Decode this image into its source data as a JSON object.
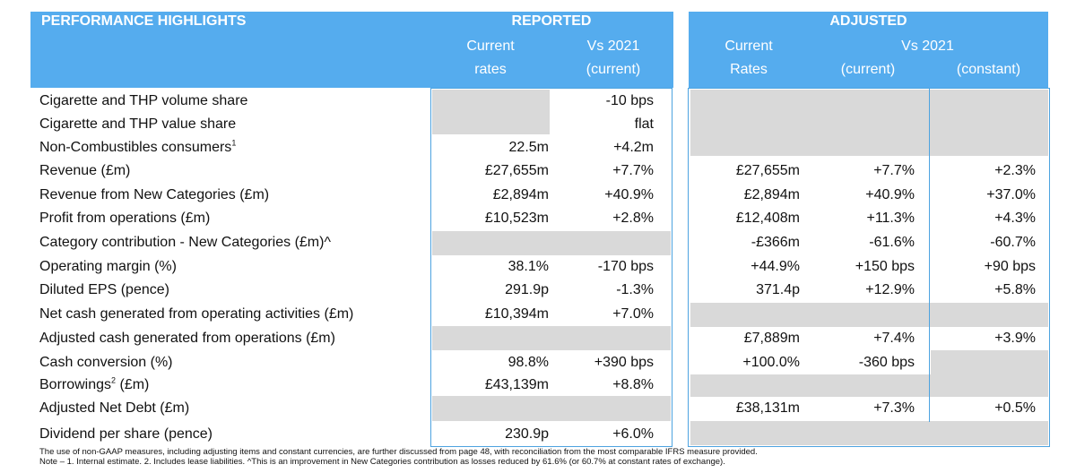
{
  "header": {
    "title": "PERFORMANCE HIGHLIGHTS",
    "reported": "REPORTED",
    "adjusted": "ADJUSTED",
    "rep_current_1": "Current",
    "rep_current_2": "rates",
    "rep_vs_1": "Vs 2021",
    "rep_vs_2": "(current)",
    "adj_current_1": "Current",
    "adj_current_2": "Rates",
    "adj_vs": "Vs 2021",
    "adj_vs_current": "(current)",
    "adj_vs_constant": "(constant)"
  },
  "rows": [
    {
      "label": "Cigarette and THP volume share",
      "sup": "",
      "rep_current": "",
      "rep_vs": "-10 bps",
      "adj_current": "",
      "adj_vs_current": "",
      "adj_vs_constant": ""
    },
    {
      "label": "Cigarette and THP value share",
      "sup": "",
      "rep_current": "",
      "rep_vs": "flat",
      "adj_current": "",
      "adj_vs_current": "",
      "adj_vs_constant": ""
    },
    {
      "label": "Non-Combustibles consumers",
      "sup": "1",
      "rep_current": "22.5m",
      "rep_vs": "+4.2m",
      "adj_current": "",
      "adj_vs_current": "",
      "adj_vs_constant": ""
    },
    {
      "label": "Revenue (£m)",
      "sup": "",
      "rep_current": "£27,655m",
      "rep_vs": "+7.7%",
      "adj_current": "£27,655m",
      "adj_vs_current": "+7.7%",
      "adj_vs_constant": "+2.3%"
    },
    {
      "label": "Revenue from New Categories (£m)",
      "sup": "",
      "rep_current": "£2,894m",
      "rep_vs": "+40.9%",
      "adj_current": "£2,894m",
      "adj_vs_current": "+40.9%",
      "adj_vs_constant": "+37.0%"
    },
    {
      "label": "Profit from operations (£m)",
      "sup": "",
      "rep_current": "£10,523m",
      "rep_vs": "+2.8%",
      "adj_current": "£12,408m",
      "adj_vs_current": "+11.3%",
      "adj_vs_constant": "+4.3%"
    },
    {
      "label": "Category contribution - New Categories (£m)^",
      "sup": "",
      "rep_current": "",
      "rep_vs": "",
      "adj_current": "-£366m",
      "adj_vs_current": "-61.6%",
      "adj_vs_constant": "-60.7%"
    },
    {
      "label": "Operating margin (%)",
      "sup": "",
      "rep_current": "38.1%",
      "rep_vs": "-170 bps",
      "adj_current": "+44.9%",
      "adj_vs_current": "+150 bps",
      "adj_vs_constant": "+90 bps"
    },
    {
      "label": "Diluted EPS (pence)",
      "sup": "",
      "rep_current": "291.9p",
      "rep_vs": "-1.3%",
      "adj_current": "371.4p",
      "adj_vs_current": "+12.9%",
      "adj_vs_constant": "+5.8%"
    },
    {
      "label": "Net cash generated from operating activities (£m)",
      "sup": "",
      "rep_current": "£10,394m",
      "rep_vs": "+7.0%",
      "adj_current": "",
      "adj_vs_current": "",
      "adj_vs_constant": ""
    },
    {
      "label": "Adjusted cash generated from operations (£m)",
      "sup": "",
      "rep_current": "",
      "rep_vs": "",
      "adj_current": "£7,889m",
      "adj_vs_current": "+7.4%",
      "adj_vs_constant": "+3.9%"
    },
    {
      "label": "Cash conversion (%)",
      "sup": "",
      "rep_current": "98.8%",
      "rep_vs": "+390 bps",
      "adj_current": "+100.0%",
      "adj_vs_current": "-360 bps",
      "adj_vs_constant": ""
    },
    {
      "label": "Borrowings",
      "sup": "2",
      "label_suffix": " (£m)",
      "rep_current": "£43,139m",
      "rep_vs": "+8.8%",
      "adj_current": "",
      "adj_vs_current": "",
      "adj_vs_constant": ""
    },
    {
      "label": "Adjusted Net Debt (£m)",
      "sup": "",
      "rep_current": "",
      "rep_vs": "",
      "adj_current": "£38,131m",
      "adj_vs_current": "+7.3%",
      "adj_vs_constant": "+0.5%"
    },
    {
      "label": "Dividend per share (pence)",
      "sup": "",
      "rep_current": "230.9p",
      "rep_vs": "+6.0%",
      "adj_current": "",
      "adj_vs_current": "",
      "adj_vs_constant": ""
    }
  ],
  "footer": {
    "line1": "The use of non-GAAP measures, including adjusting items and constant currencies, are further discussed from page 48, with reconciliation from the most comparable IFRS measure provided.",
    "line2": "Note – 1. Internal estimate.  2. Includes lease liabilities. ^This is an improvement in New Categories contribution as losses reduced by 61.6% (or 60.7% at constant rates of exchange)."
  },
  "colors": {
    "header_blue": "#55acee",
    "grey_fill": "#d9d9d9",
    "frame_blue": "#4da3e0"
  }
}
